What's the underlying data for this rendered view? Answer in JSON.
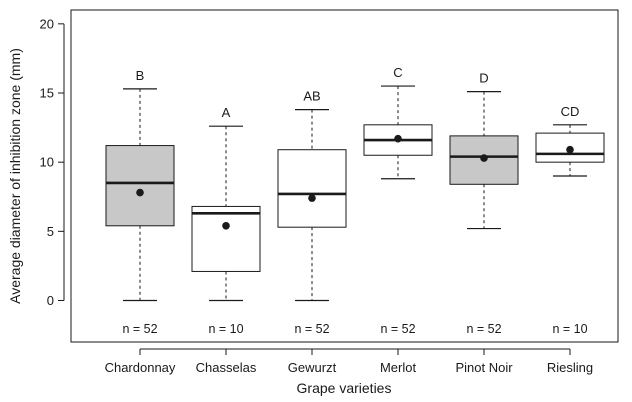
{
  "chart_data": {
    "type": "boxplot",
    "xlabel": "Grape varieties",
    "ylabel": "Average diameter of inhibition zone (mm)",
    "ylim": [
      -3,
      21
    ],
    "yticks": [
      0,
      5,
      10,
      15,
      20
    ],
    "grid": false,
    "colors": {
      "shaded": "#c8c8c8",
      "plain": "#ffffff",
      "line": "#1a1a1a"
    },
    "boxes": [
      {
        "category": "Chardonnay",
        "min": 0,
        "q1": 5.4,
        "median": 8.5,
        "q3": 11.2,
        "max": 15.3,
        "mean": 7.8,
        "letter": "B",
        "n_label": "n = 52",
        "shaded": true
      },
      {
        "category": "Chasselas",
        "min": 0,
        "q1": 2.1,
        "median": 6.3,
        "q3": 6.8,
        "max": 12.6,
        "mean": 5.4,
        "letter": "A",
        "n_label": "n = 10",
        "shaded": false
      },
      {
        "category": "Gewurzt",
        "min": 0,
        "q1": 5.3,
        "median": 7.7,
        "q3": 10.9,
        "max": 13.8,
        "mean": 7.4,
        "letter": "AB",
        "n_label": "n = 52",
        "shaded": false
      },
      {
        "category": "Merlot",
        "min": 8.8,
        "q1": 10.5,
        "median": 11.6,
        "q3": 12.7,
        "max": 15.5,
        "mean": 11.7,
        "letter": "C",
        "n_label": "n = 52",
        "shaded": false
      },
      {
        "category": "Pinot Noir",
        "min": 5.2,
        "q1": 8.4,
        "median": 10.4,
        "q3": 11.9,
        "max": 15.1,
        "mean": 10.3,
        "letter": "D",
        "n_label": "n = 52",
        "shaded": true
      },
      {
        "category": "Riesling",
        "min": 9.0,
        "q1": 10.0,
        "median": 10.6,
        "q3": 12.1,
        "max": 12.7,
        "mean": 10.9,
        "letter": "CD",
        "n_label": "n = 10",
        "shaded": false
      }
    ]
  }
}
